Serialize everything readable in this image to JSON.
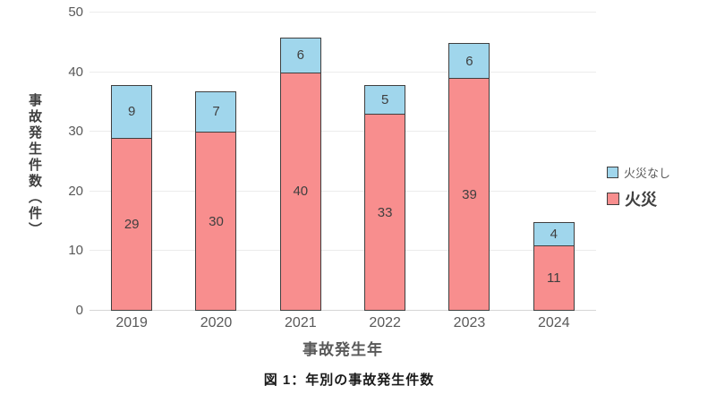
{
  "chart_data": {
    "type": "bar",
    "stacked": true,
    "categories": [
      "2019",
      "2020",
      "2021",
      "2022",
      "2023",
      "2024"
    ],
    "series": [
      {
        "name": "火災",
        "color": "#F88E8E",
        "values": [
          29,
          30,
          40,
          33,
          39,
          11
        ]
      },
      {
        "name": "火災なし",
        "color": "#A0D6EC",
        "values": [
          9,
          7,
          6,
          5,
          6,
          4
        ]
      }
    ],
    "totals": [
      38,
      37,
      46,
      38,
      45,
      15
    ],
    "xlabel": "事故発生年",
    "ylabel": "事故発生件数（件）",
    "ylim": [
      0,
      50
    ],
    "yticks": [
      0,
      10,
      20,
      30,
      40,
      50
    ],
    "grid": "horizontal",
    "legend_position": "right",
    "bar_border_color": "#3f3f3f",
    "gridline_color": "#ececec"
  },
  "caption": "図 1：年別の事故発生件数"
}
